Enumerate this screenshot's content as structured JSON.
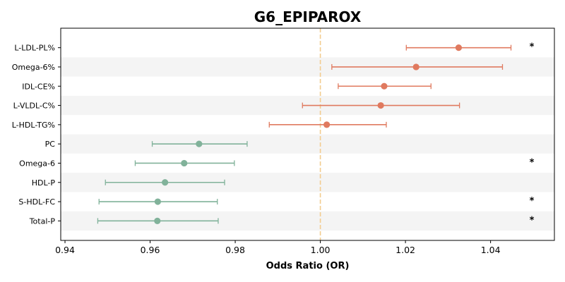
{
  "chart_data": {
    "type": "scatter",
    "title": "G6_EPIPAROX",
    "xlabel": "Odds Ratio (OR)",
    "ylabel": "",
    "xlim": [
      0.939,
      1.055
    ],
    "xticks": [
      0.94,
      0.96,
      0.98,
      1.0,
      1.02,
      1.04
    ],
    "xtick_labels": [
      "0.94",
      "0.96",
      "0.98",
      "1.00",
      "1.02",
      "1.04"
    ],
    "reference_line": 1.0,
    "grid": false,
    "alternating_row_shading": true,
    "colors": {
      "positive": "#e07a5f",
      "negative": "#81b29a",
      "reference": "#f2cc8f",
      "shade": "#f4f4f4"
    },
    "items": [
      {
        "label": "L-LDL-PL%",
        "or": 1.0325,
        "lo": 1.0202,
        "hi": 1.0448,
        "direction": "positive",
        "mark": "*"
      },
      {
        "label": "Omega-6%",
        "or": 1.0225,
        "lo": 1.0027,
        "hi": 1.0428,
        "direction": "positive",
        "mark": ""
      },
      {
        "label": "IDL-CE%",
        "or": 1.015,
        "lo": 1.0042,
        "hi": 1.026,
        "direction": "positive",
        "mark": ""
      },
      {
        "label": "L-VLDL-C%",
        "or": 1.0142,
        "lo": 0.9958,
        "hi": 1.0327,
        "direction": "positive",
        "mark": ""
      },
      {
        "label": "L-HDL-TG%",
        "or": 1.0015,
        "lo": 0.988,
        "hi": 1.0155,
        "direction": "positive",
        "mark": ""
      },
      {
        "label": "PC",
        "or": 0.9715,
        "lo": 0.9605,
        "hi": 0.9828,
        "direction": "negative",
        "mark": ""
      },
      {
        "label": "Omega-6",
        "or": 0.968,
        "lo": 0.9565,
        "hi": 0.9798,
        "direction": "negative",
        "mark": "*"
      },
      {
        "label": "HDL-P",
        "or": 0.9635,
        "lo": 0.9495,
        "hi": 0.9775,
        "direction": "negative",
        "mark": ""
      },
      {
        "label": "S-HDL-FC",
        "or": 0.9618,
        "lo": 0.948,
        "hi": 0.9758,
        "direction": "negative",
        "mark": "*"
      },
      {
        "label": "Total-P",
        "or": 0.9617,
        "lo": 0.9477,
        "hi": 0.976,
        "direction": "negative",
        "mark": "*"
      }
    ]
  }
}
